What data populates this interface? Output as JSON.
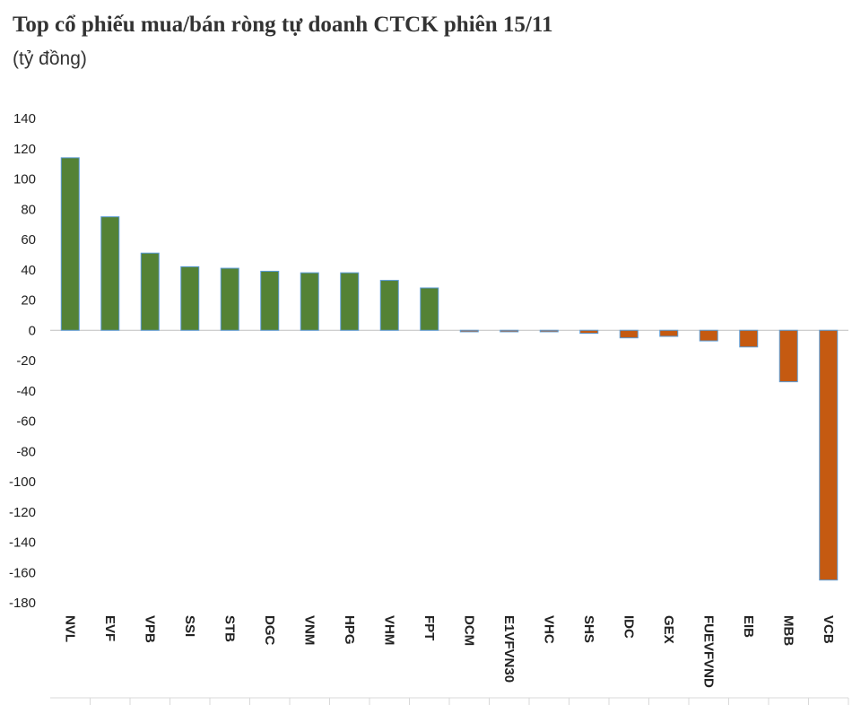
{
  "chart_data": {
    "type": "bar",
    "title": "Top cổ phiếu mua/bán ròng tự doanh CTCK phiên 15/11",
    "subtitle": "(tỷ đồng)",
    "categories": [
      "NVL",
      "EVF",
      "VPB",
      "SSI",
      "STB",
      "DGC",
      "VNM",
      "HPG",
      "VHM",
      "FPT",
      "DCM",
      "E1VFVN30",
      "VHC",
      "SHS",
      "IDC",
      "GEX",
      "FUEVFVND",
      "EIB",
      "MBB",
      "VCB"
    ],
    "values": [
      114,
      75,
      51,
      42,
      41,
      39,
      38,
      38,
      33,
      28,
      -1,
      -1,
      -1,
      -2,
      -5,
      -4,
      -7,
      -11,
      -34,
      -165
    ],
    "ylim": [
      -180,
      140
    ],
    "yticks": [
      140,
      120,
      100,
      80,
      60,
      40,
      20,
      0,
      -20,
      -40,
      -60,
      -80,
      -100,
      -120,
      -140,
      -160,
      -180
    ],
    "colors": {
      "positive": "#548235",
      "negative": "#C55A11",
      "bar_outline": "#5B9BD5"
    },
    "grid": false
  }
}
